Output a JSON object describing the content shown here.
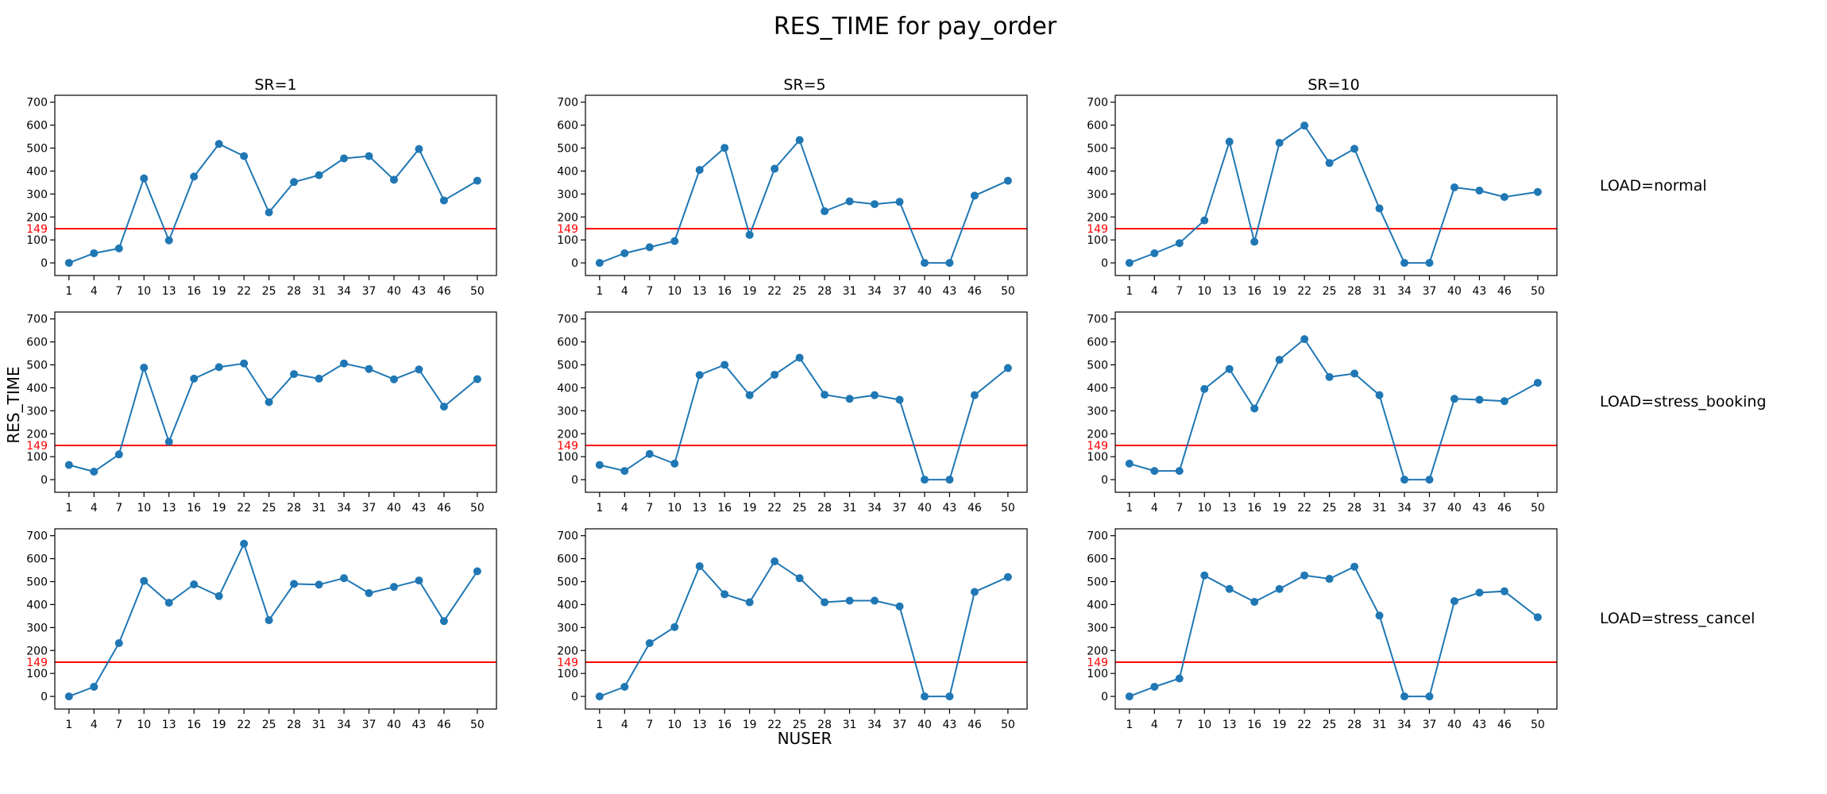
{
  "figure": {
    "title": "RES_TIME for pay_order",
    "ylabel": "RES_TIME",
    "xlabel": "NUSER"
  },
  "colors": {
    "series": "#1f77b4",
    "threshold": "#ff0000",
    "axis": "#000000"
  },
  "threshold": {
    "value": 149,
    "label": "149"
  },
  "y_ticks": [
    0,
    100,
    200,
    300,
    400,
    500,
    600,
    700
  ],
  "column_titles": [
    "SR=1",
    "SR=5",
    "SR=10"
  ],
  "row_labels": [
    "LOAD=normal",
    "LOAD=stress_booking",
    "LOAD=stress_cancel"
  ],
  "chart_data": [
    {
      "type": "line",
      "title": "SR=1",
      "row_label": "LOAD=normal",
      "x": [
        1,
        4,
        7,
        10,
        13,
        16,
        19,
        22,
        25,
        28,
        31,
        34,
        37,
        40,
        43,
        46,
        50
      ],
      "y": [
        0,
        42,
        63,
        368,
        98,
        376,
        518,
        465,
        220,
        352,
        382,
        455,
        465,
        362,
        496,
        272,
        358
      ],
      "ylim": [
        -55,
        730
      ],
      "xlim": [
        -0.7,
        52.3
      ]
    },
    {
      "type": "line",
      "title": "SR=5",
      "row_label": "LOAD=normal",
      "x": [
        1,
        4,
        7,
        10,
        13,
        16,
        19,
        22,
        25,
        28,
        31,
        34,
        37,
        40,
        43,
        46,
        50
      ],
      "y": [
        0,
        42,
        68,
        95,
        405,
        501,
        122,
        410,
        535,
        225,
        268,
        256,
        266,
        0,
        0,
        293,
        358
      ],
      "ylim": [
        -55,
        730
      ],
      "xlim": [
        -0.7,
        52.3
      ]
    },
    {
      "type": "line",
      "title": "SR=10",
      "row_label": "LOAD=normal",
      "x": [
        1,
        4,
        7,
        10,
        13,
        16,
        19,
        22,
        25,
        28,
        31,
        34,
        37,
        40,
        43,
        46,
        50
      ],
      "y": [
        0,
        42,
        86,
        185,
        528,
        92,
        523,
        598,
        435,
        497,
        237,
        0,
        0,
        329,
        315,
        287,
        309
      ],
      "ylim": [
        -55,
        730
      ],
      "xlim": [
        -0.7,
        52.3
      ]
    },
    {
      "type": "line",
      "title": "",
      "row_label": "LOAD=stress_booking",
      "x": [
        1,
        4,
        7,
        10,
        13,
        16,
        19,
        22,
        25,
        28,
        31,
        34,
        37,
        40,
        43,
        46,
        50
      ],
      "y": [
        64,
        35,
        110,
        488,
        165,
        440,
        490,
        506,
        338,
        460,
        440,
        506,
        482,
        437,
        480,
        318,
        438
      ],
      "ylim": [
        -55,
        730
      ],
      "xlim": [
        -0.7,
        52.3
      ]
    },
    {
      "type": "line",
      "title": "",
      "row_label": "LOAD=stress_booking",
      "x": [
        1,
        4,
        7,
        10,
        13,
        16,
        19,
        22,
        25,
        28,
        31,
        34,
        37,
        40,
        43,
        46,
        50
      ],
      "y": [
        64,
        38,
        112,
        70,
        456,
        500,
        368,
        457,
        531,
        370,
        352,
        368,
        348,
        0,
        0,
        368,
        486
      ],
      "ylim": [
        -55,
        730
      ],
      "xlim": [
        -0.7,
        52.3
      ]
    },
    {
      "type": "line",
      "title": "",
      "row_label": "LOAD=stress_booking",
      "x": [
        1,
        4,
        7,
        10,
        13,
        16,
        19,
        22,
        25,
        28,
        31,
        34,
        37,
        40,
        43,
        46,
        50
      ],
      "y": [
        70,
        38,
        38,
        395,
        482,
        310,
        522,
        612,
        447,
        462,
        368,
        0,
        0,
        352,
        348,
        342,
        422
      ],
      "ylim": [
        -55,
        730
      ],
      "xlim": [
        -0.7,
        52.3
      ]
    },
    {
      "type": "line",
      "title": "",
      "row_label": "LOAD=stress_cancel",
      "x": [
        1,
        4,
        7,
        10,
        13,
        16,
        19,
        22,
        25,
        28,
        31,
        34,
        37,
        40,
        43,
        46,
        50
      ],
      "y": [
        0,
        42,
        232,
        503,
        408,
        488,
        437,
        665,
        332,
        490,
        487,
        515,
        450,
        477,
        505,
        328,
        545
      ],
      "ylim": [
        -55,
        730
      ],
      "xlim": [
        -0.7,
        52.3
      ]
    },
    {
      "type": "line",
      "title": "",
      "row_label": "LOAD=stress_cancel",
      "x": [
        1,
        4,
        7,
        10,
        13,
        16,
        19,
        22,
        25,
        28,
        31,
        34,
        37,
        40,
        43,
        46,
        50
      ],
      "y": [
        0,
        42,
        232,
        302,
        567,
        445,
        410,
        588,
        515,
        410,
        417,
        417,
        392,
        0,
        0,
        455,
        520
      ],
      "ylim": [
        -55,
        730
      ],
      "xlim": [
        -0.7,
        52.3
      ]
    },
    {
      "type": "line",
      "title": "",
      "row_label": "LOAD=stress_cancel",
      "x": [
        1,
        4,
        7,
        10,
        13,
        16,
        19,
        22,
        25,
        28,
        31,
        34,
        37,
        40,
        43,
        46,
        50
      ],
      "y": [
        0,
        42,
        78,
        527,
        468,
        412,
        468,
        527,
        512,
        565,
        352,
        0,
        0,
        415,
        452,
        458,
        345
      ],
      "ylim": [
        -55,
        730
      ],
      "xlim": [
        -0.7,
        52.3
      ]
    }
  ]
}
